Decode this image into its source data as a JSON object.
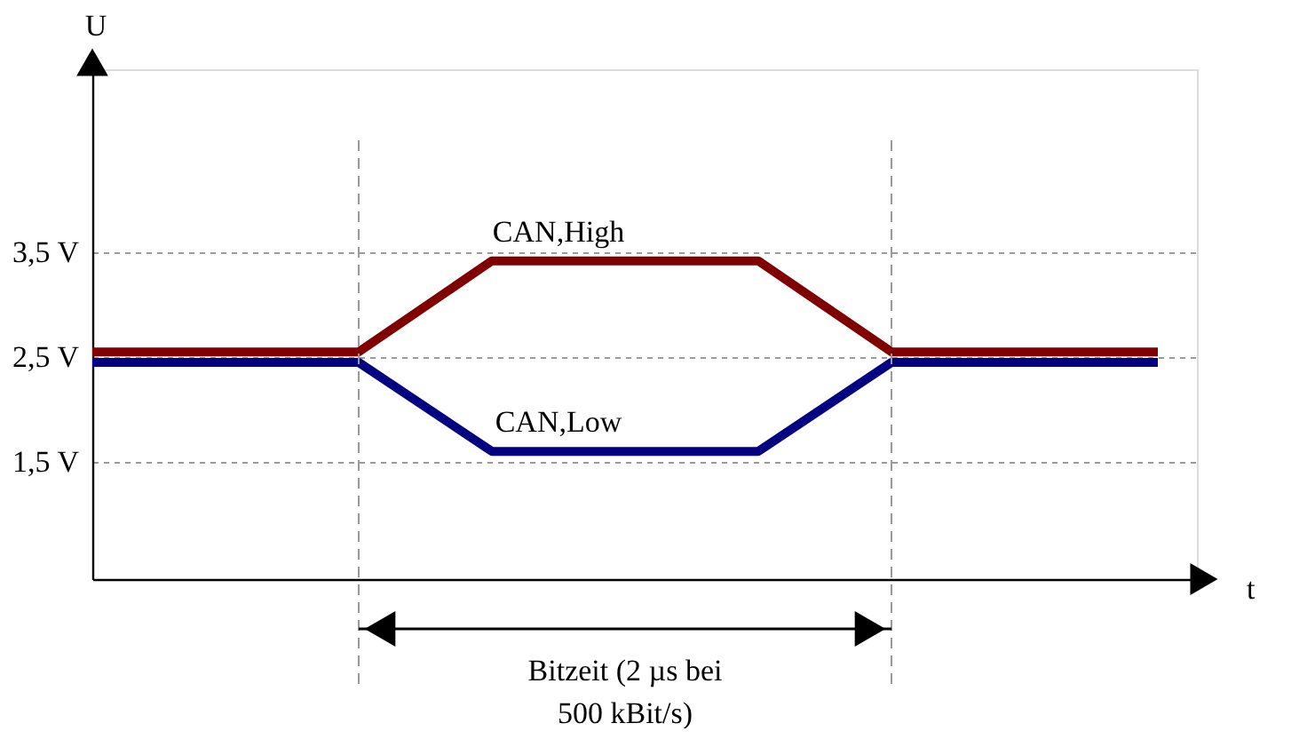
{
  "chart_data": {
    "type": "line",
    "xlabel": "t",
    "ylabel": "U",
    "categories": [
      null,
      null,
      null,
      null,
      null,
      null,
      null,
      null,
      null
    ],
    "ylim": [
      0.38,
      5.25
    ],
    "yticks": [
      {
        "value": 1.5,
        "label": "1,5 V"
      },
      {
        "value": 2.5,
        "label": "2,5 V"
      },
      {
        "value": 3.5,
        "label": "3,5 V"
      }
    ],
    "tick_labels": "y",
    "grid": "y",
    "line_style": "solid",
    "marker": "none",
    "series": [
      {
        "name": "CAN,High",
        "color": "#800000",
        "values": [
          2.55,
          2.55,
          2.55,
          3.42,
          3.42,
          3.42,
          2.55,
          2.55,
          2.55
        ]
      },
      {
        "name": "CAN,Low",
        "color": "#000080",
        "values": [
          2.45,
          2.45,
          2.45,
          1.6,
          1.6,
          1.6,
          2.45,
          2.45,
          2.45
        ]
      }
    ],
    "annotations": [
      "Bitzeit (2  µs bei 500 kBit/s)"
    ]
  }
}
